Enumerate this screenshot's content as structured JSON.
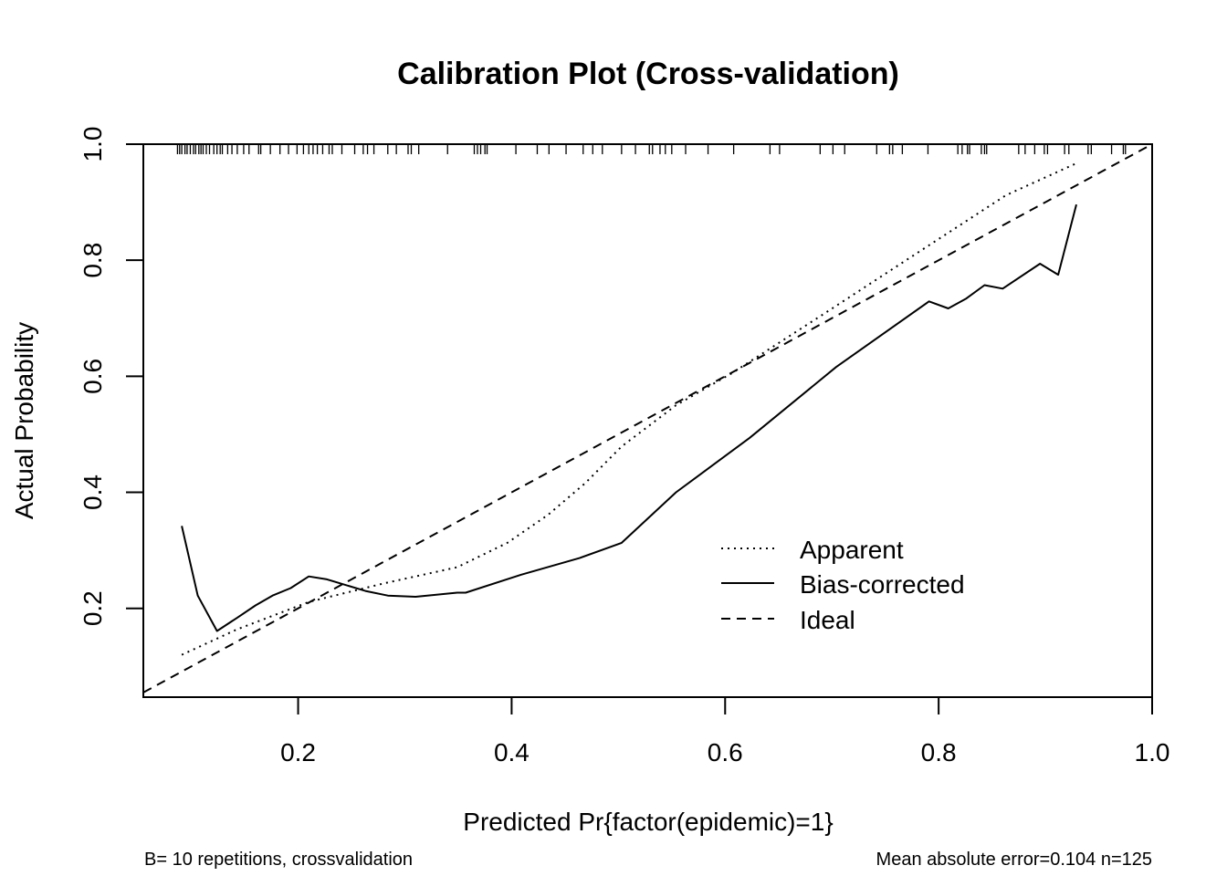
{
  "chart_data": {
    "type": "line",
    "title": "Calibration Plot (Cross-validation)",
    "xlabel": "Predicted Pr{factor(epidemic)=1}",
    "ylabel": "Actual Probability",
    "xlim": [
      0.055,
      1.0
    ],
    "ylim": [
      0.047,
      1.0
    ],
    "x_ticks": [
      0.2,
      0.4,
      0.6,
      0.8,
      1.0
    ],
    "x_tick_labels": [
      "0.2",
      "0.4",
      "0.6",
      "0.8",
      "1.0"
    ],
    "y_ticks": [
      0.2,
      0.4,
      0.6,
      0.8,
      1.0
    ],
    "y_tick_labels": [
      "0.2",
      "0.4",
      "0.6",
      "0.8",
      "1.0"
    ],
    "grid": false,
    "legend_position": "bottom-right",
    "series": [
      {
        "name": "Apparent",
        "line_style": "dotted",
        "x": [
          0.091,
          0.143,
          0.21,
          0.28,
          0.349,
          0.396,
          0.434,
          0.469,
          0.503,
          0.554,
          0.606,
          0.692,
          0.777,
          0.863,
          0.929
        ],
        "y": [
          0.12,
          0.164,
          0.211,
          0.243,
          0.271,
          0.313,
          0.361,
          0.416,
          0.479,
          0.55,
          0.605,
          0.707,
          0.809,
          0.912,
          0.967
        ]
      },
      {
        "name": "Bias-corrected",
        "line_style": "solid",
        "x": [
          0.091,
          0.106,
          0.124,
          0.143,
          0.16,
          0.176,
          0.193,
          0.21,
          0.227,
          0.263,
          0.284,
          0.31,
          0.349,
          0.357,
          0.409,
          0.464,
          0.503,
          0.554,
          0.623,
          0.704,
          0.791,
          0.809,
          0.826,
          0.843,
          0.86,
          0.895,
          0.912,
          0.929
        ],
        "y": [
          0.342,
          0.222,
          0.161,
          0.184,
          0.205,
          0.222,
          0.235,
          0.255,
          0.25,
          0.23,
          0.222,
          0.22,
          0.227,
          0.227,
          0.258,
          0.287,
          0.313,
          0.4,
          0.494,
          0.616,
          0.729,
          0.717,
          0.734,
          0.757,
          0.751,
          0.794,
          0.775,
          0.896
        ]
      },
      {
        "name": "Ideal",
        "line_style": "dashed",
        "x": [
          0.055,
          1.0
        ],
        "y": [
          0.055,
          1.0
        ]
      }
    ],
    "rug_x": [
      0.087,
      0.089,
      0.091,
      0.094,
      0.096,
      0.099,
      0.102,
      0.104,
      0.107,
      0.109,
      0.111,
      0.114,
      0.117,
      0.121,
      0.124,
      0.127,
      0.129,
      0.134,
      0.138,
      0.143,
      0.149,
      0.154,
      0.163,
      0.165,
      0.174,
      0.183,
      0.191,
      0.199,
      0.205,
      0.21,
      0.214,
      0.218,
      0.223,
      0.229,
      0.232,
      0.241,
      0.253,
      0.261,
      0.265,
      0.271,
      0.284,
      0.292,
      0.303,
      0.306,
      0.313,
      0.34,
      0.365,
      0.368,
      0.371,
      0.375,
      0.377,
      0.404,
      0.424,
      0.435,
      0.451,
      0.467,
      0.476,
      0.485,
      0.503,
      0.516,
      0.529,
      0.532,
      0.539,
      0.544,
      0.55,
      0.563,
      0.584,
      0.608,
      0.642,
      0.651,
      0.689,
      0.701,
      0.712,
      0.742,
      0.754,
      0.757,
      0.766,
      0.79,
      0.818,
      0.822,
      0.827,
      0.829,
      0.84,
      0.843,
      0.845,
      0.875,
      0.881,
      0.89,
      0.899,
      0.902,
      0.918,
      0.922,
      0.94,
      0.943,
      0.962,
      0.973,
      0.975
    ],
    "legend": [
      "Apparent",
      "Bias-corrected",
      "Ideal"
    ],
    "annotations": {
      "bottom_left": "B= 10 repetitions, crossvalidation",
      "bottom_right": "Mean absolute error=0.104 n=125"
    }
  }
}
